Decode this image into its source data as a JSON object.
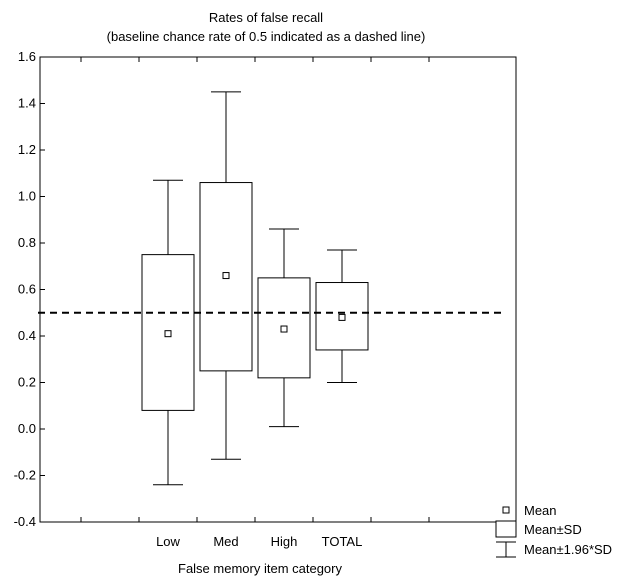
{
  "chart_data": {
    "type": "boxplot",
    "title": "Rates of false recall",
    "subtitle": "(baseline chance rate of 0.5 indicated as a dashed line)",
    "xlabel": "False memory item category",
    "ylabel": "",
    "ylim": [
      -0.4,
      1.6
    ],
    "y_ticks": [
      "-0.4",
      "-0.2",
      "0.0",
      "0.2",
      "0.4",
      "0.6",
      "0.8",
      "1.0",
      "1.2",
      "1.4",
      "1.6"
    ],
    "categories": [
      "Low",
      "Med",
      "High",
      "TOTAL"
    ],
    "series": [
      {
        "category": "Low",
        "mean": 0.41,
        "sd_low": 0.08,
        "sd_high": 0.75,
        "ci_low": -0.24,
        "ci_high": 1.07
      },
      {
        "category": "Med",
        "mean": 0.66,
        "sd_low": 0.25,
        "sd_high": 1.06,
        "ci_low": -0.13,
        "ci_high": 1.45
      },
      {
        "category": "High",
        "mean": 0.43,
        "sd_low": 0.22,
        "sd_high": 0.65,
        "ci_low": 0.01,
        "ci_high": 0.86
      },
      {
        "category": "TOTAL",
        "mean": 0.48,
        "sd_low": 0.34,
        "sd_high": 0.63,
        "ci_low": 0.2,
        "ci_high": 0.77
      }
    ],
    "reference_line": {
      "value": 0.5,
      "style": "dashed"
    },
    "legend": {
      "placement": "bottom-right",
      "items": [
        "Mean",
        "Mean±SD",
        "Mean±1.96*SD"
      ]
    },
    "grid": false
  }
}
